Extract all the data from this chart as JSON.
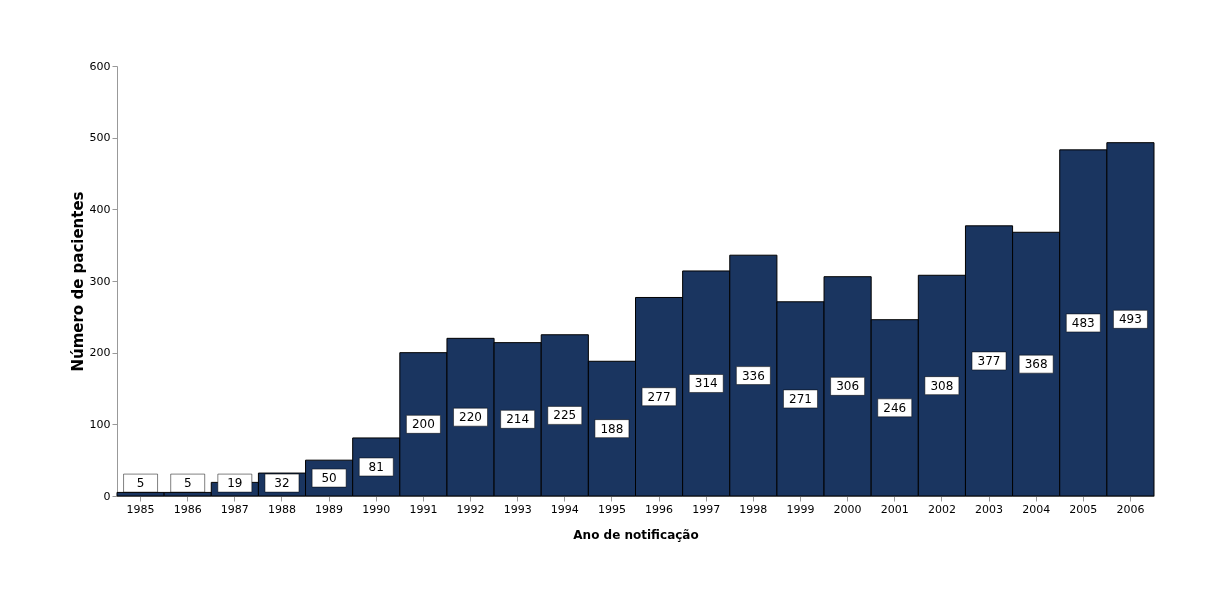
{
  "chart_data": {
    "type": "bar",
    "xlabel": "Ano de notificação",
    "ylabel": "Número de pacientes",
    "categories": [
      "1985",
      "1986",
      "1987",
      "1988",
      "1989",
      "1990",
      "1991",
      "1992",
      "1993",
      "1994",
      "1995",
      "1996",
      "1997",
      "1998",
      "1999",
      "2000",
      "2001",
      "2002",
      "2003",
      "2004",
      "2005",
      "2006"
    ],
    "values": [
      5,
      5,
      19,
      32,
      50,
      81,
      200,
      220,
      214,
      225,
      188,
      277,
      314,
      336,
      271,
      306,
      246,
      308,
      377,
      368,
      483,
      493
    ],
    "color": "#1a3560",
    "ylim": [
      0,
      600
    ],
    "yticks": [
      0,
      100,
      200,
      300,
      400,
      500,
      600
    ],
    "grid": false,
    "data_labels": true
  }
}
